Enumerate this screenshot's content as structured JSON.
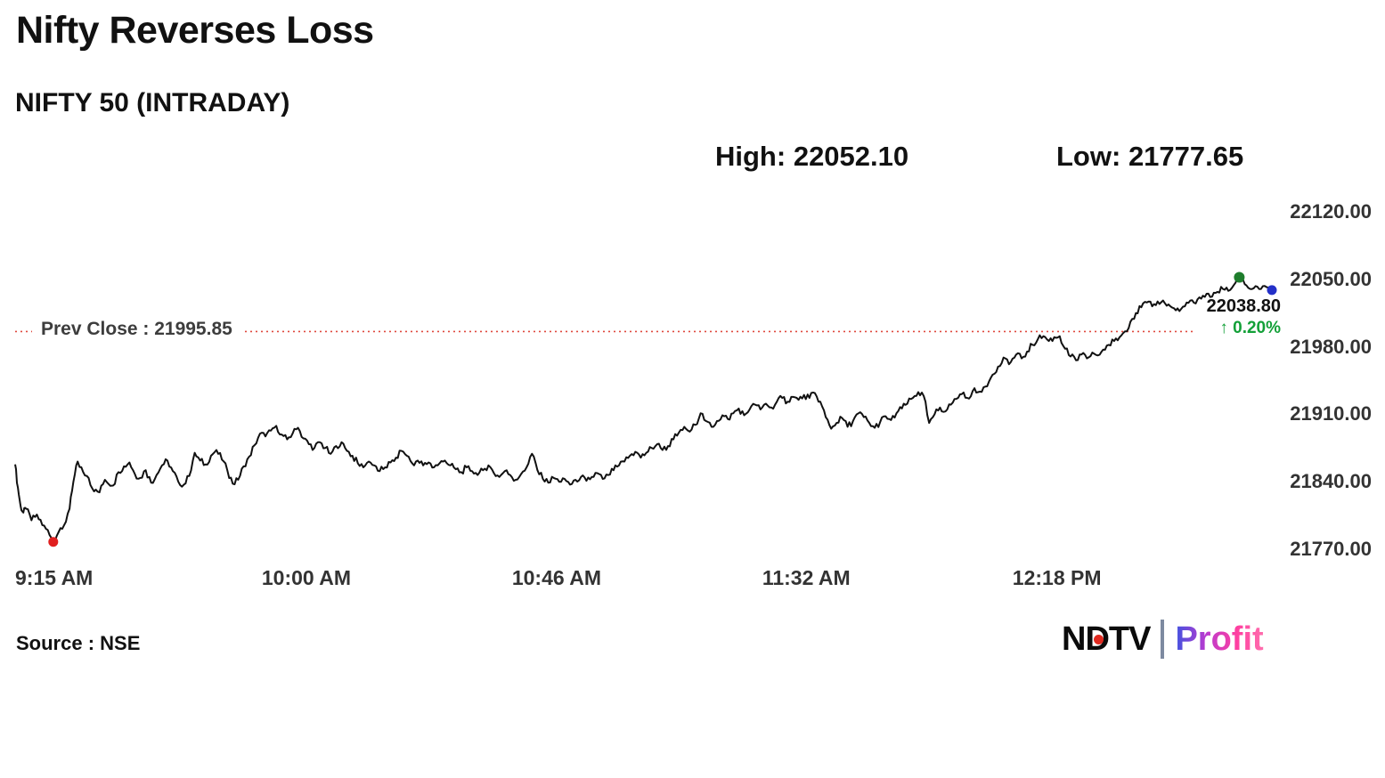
{
  "header": {
    "title": "Nifty Reverses Loss",
    "subtitle": "NIFTY 50 (INTRADAY)"
  },
  "stats": {
    "high_label": "High:",
    "high_value": "22052.10",
    "low_label": "Low:",
    "low_value": "21777.65"
  },
  "footer": {
    "source": "Source : NSE",
    "logo": {
      "brand": "NDTV",
      "product": "Profit"
    }
  },
  "chart_data": {
    "type": "line",
    "title": "Nifty Reverses Loss",
    "subtitle": "NIFTY 50 (INTRADAY)",
    "high": 22052.1,
    "low": 21777.65,
    "last": 22038.8,
    "last_label": "22038.80",
    "change_arrow": "↑",
    "change_pct": "0.20%",
    "change_color": "#13a038",
    "prev_close": {
      "label": "Prev Close : 21995.85",
      "value": 21995.85,
      "color": "#e0483e"
    },
    "ylim": [
      21770,
      22120
    ],
    "xlim": [
      0,
      231
    ],
    "x_unit": "minutes since 9:15 AM",
    "grid": false,
    "legend": "none",
    "y_ticks": [
      {
        "value": 22120,
        "label": "22120.00"
      },
      {
        "value": 22050,
        "label": "22050.00"
      },
      {
        "value": 21980,
        "label": "21980.00"
      },
      {
        "value": 21910,
        "label": "21910.00"
      },
      {
        "value": 21840,
        "label": "21840.00"
      },
      {
        "value": 21770,
        "label": "21770.00"
      }
    ],
    "x_ticks": [
      {
        "t": 0,
        "label": "9:15 AM"
      },
      {
        "t": 45,
        "label": "10:00 AM"
      },
      {
        "t": 91,
        "label": "10:46 AM"
      },
      {
        "t": 137,
        "label": "11:32 AM"
      },
      {
        "t": 183,
        "label": "12:18 PM"
      }
    ],
    "markers": [
      {
        "name": "low-marker",
        "t": 7,
        "value": 21777.65,
        "color": "#e01f1f",
        "r": 5.5
      },
      {
        "name": "high-marker",
        "t": 225,
        "value": 22052.1,
        "color": "#1e7d2c",
        "r": 6
      },
      {
        "name": "last-marker",
        "t": 231,
        "value": 22038.8,
        "color": "#2430c8",
        "r": 5.5
      }
    ],
    "series": [
      {
        "name": "NIFTY 50",
        "color": "#111111",
        "points": [
          [
            0,
            21858
          ],
          [
            0.5,
            21834
          ],
          [
            1,
            21815
          ],
          [
            1.5,
            21808
          ],
          [
            2,
            21812
          ],
          [
            3,
            21800
          ],
          [
            4,
            21806
          ],
          [
            5,
            21795
          ],
          [
            6,
            21790
          ],
          [
            7,
            21777.65
          ],
          [
            8,
            21788
          ],
          [
            9,
            21795
          ],
          [
            10,
            21812
          ],
          [
            10.7,
            21840
          ],
          [
            11.5,
            21861
          ],
          [
            12.5,
            21850
          ],
          [
            13.5,
            21844
          ],
          [
            14.5,
            21830
          ],
          [
            15.5,
            21829
          ],
          [
            16.5,
            21842
          ],
          [
            18,
            21836
          ],
          [
            19,
            21850
          ],
          [
            20,
            21856
          ],
          [
            21,
            21860
          ],
          [
            22,
            21848
          ],
          [
            23,
            21844
          ],
          [
            24,
            21852
          ],
          [
            25,
            21839
          ],
          [
            26,
            21847
          ],
          [
            27,
            21857
          ],
          [
            28,
            21862
          ],
          [
            29,
            21851
          ],
          [
            30,
            21840
          ],
          [
            31,
            21837
          ],
          [
            32,
            21846
          ],
          [
            33,
            21870
          ],
          [
            34,
            21862
          ],
          [
            35,
            21858
          ],
          [
            36,
            21867
          ],
          [
            37,
            21873
          ],
          [
            38,
            21863
          ],
          [
            39,
            21852
          ],
          [
            40,
            21838
          ],
          [
            41,
            21842
          ],
          [
            42,
            21856
          ],
          [
            43,
            21866
          ],
          [
            44,
            21878
          ],
          [
            45,
            21890
          ],
          [
            46,
            21887
          ],
          [
            47,
            21893
          ],
          [
            48,
            21898
          ],
          [
            49,
            21889
          ],
          [
            50,
            21884
          ],
          [
            51,
            21890
          ],
          [
            52,
            21896
          ],
          [
            53,
            21885
          ],
          [
            54,
            21879
          ],
          [
            55,
            21875
          ],
          [
            56,
            21881
          ],
          [
            57,
            21875
          ],
          [
            58,
            21869
          ],
          [
            59,
            21877
          ],
          [
            60,
            21881
          ],
          [
            61,
            21872
          ],
          [
            62,
            21867
          ],
          [
            63,
            21859
          ],
          [
            64,
            21855
          ],
          [
            65,
            21861
          ],
          [
            66,
            21857
          ],
          [
            67,
            21851
          ],
          [
            68,
            21855
          ],
          [
            69,
            21860
          ],
          [
            70,
            21865
          ],
          [
            71,
            21872
          ],
          [
            72,
            21867
          ],
          [
            73,
            21859
          ],
          [
            74,
            21862
          ],
          [
            75,
            21857
          ],
          [
            76,
            21860
          ],
          [
            77,
            21855
          ],
          [
            78,
            21859
          ],
          [
            79,
            21862
          ],
          [
            80,
            21857
          ],
          [
            81,
            21853
          ],
          [
            82,
            21850
          ],
          [
            83,
            21855
          ],
          [
            84,
            21851
          ],
          [
            85,
            21847
          ],
          [
            86,
            21852
          ],
          [
            87,
            21857
          ],
          [
            88,
            21849
          ],
          [
            89,
            21845
          ],
          [
            90,
            21851
          ],
          [
            91,
            21847
          ],
          [
            92,
            21842
          ],
          [
            93,
            21848
          ],
          [
            94,
            21855
          ],
          [
            95,
            21869
          ],
          [
            96,
            21852
          ],
          [
            97,
            21843
          ],
          [
            98,
            21839
          ],
          [
            99,
            21844
          ],
          [
            100,
            21840
          ],
          [
            101,
            21843
          ],
          [
            102,
            21837
          ],
          [
            103,
            21842
          ],
          [
            104,
            21845
          ],
          [
            105,
            21841
          ],
          [
            106,
            21845
          ],
          [
            107,
            21849
          ],
          [
            108,
            21843
          ],
          [
            109,
            21847
          ],
          [
            110,
            21852
          ],
          [
            111,
            21857
          ],
          [
            112,
            21861
          ],
          [
            113,
            21867
          ],
          [
            114,
            21871
          ],
          [
            115,
            21865
          ],
          [
            116,
            21870
          ],
          [
            117,
            21875
          ],
          [
            118,
            21879
          ],
          [
            119,
            21873
          ],
          [
            120,
            21877
          ],
          [
            121,
            21884
          ],
          [
            122,
            21891
          ],
          [
            123,
            21897
          ],
          [
            124,
            21892
          ],
          [
            125,
            21899
          ],
          [
            126,
            21911
          ],
          [
            127,
            21903
          ],
          [
            128,
            21897
          ],
          [
            129,
            21903
          ],
          [
            130,
            21909
          ],
          [
            131,
            21905
          ],
          [
            132,
            21911
          ],
          [
            133,
            21916
          ],
          [
            134,
            21909
          ],
          [
            135,
            21915
          ],
          [
            136,
            21920
          ],
          [
            137,
            21915
          ],
          [
            138,
            21921
          ],
          [
            139,
            21917
          ],
          [
            140,
            21923
          ],
          [
            141,
            21927
          ],
          [
            142,
            21923
          ],
          [
            143,
            21928
          ],
          [
            144,
            21925
          ],
          [
            145,
            21930
          ],
          [
            146,
            21927
          ],
          [
            147,
            21932
          ],
          [
            148,
            21923
          ],
          [
            149,
            21907
          ],
          [
            150,
            21895
          ],
          [
            151,
            21901
          ],
          [
            152,
            21906
          ],
          [
            153,
            21897
          ],
          [
            154,
            21903
          ],
          [
            155,
            21911
          ],
          [
            156,
            21907
          ],
          [
            157,
            21901
          ],
          [
            158,
            21896
          ],
          [
            159,
            21902
          ],
          [
            160,
            21908
          ],
          [
            161,
            21904
          ],
          [
            162,
            21911
          ],
          [
            163,
            21916
          ],
          [
            164,
            21921
          ],
          [
            165,
            21927
          ],
          [
            166,
            21933
          ],
          [
            167,
            21929
          ],
          [
            168,
            21901
          ],
          [
            169,
            21910
          ],
          [
            170,
            21917
          ],
          [
            171,
            21913
          ],
          [
            172,
            21920
          ],
          [
            173,
            21926
          ],
          [
            174,
            21931
          ],
          [
            175,
            21927
          ],
          [
            176,
            21934
          ],
          [
            177,
            21933
          ],
          [
            178,
            21938
          ],
          [
            179,
            21944
          ],
          [
            180,
            21952
          ],
          [
            181,
            21960
          ],
          [
            182,
            21968
          ],
          [
            183,
            21964
          ],
          [
            184,
            21972
          ],
          [
            185,
            21968
          ],
          [
            186,
            21975
          ],
          [
            187,
            21982
          ],
          [
            188,
            21988
          ],
          [
            189,
            21991
          ],
          [
            190,
            21986
          ],
          [
            191,
            21990
          ],
          [
            192,
            21991
          ],
          [
            193,
            21978
          ],
          [
            194,
            21970
          ],
          [
            195,
            21966
          ],
          [
            196,
            21972
          ],
          [
            197,
            21968
          ],
          [
            198,
            21974
          ],
          [
            199,
            21971
          ],
          [
            200,
            21977
          ],
          [
            201,
            21982
          ],
          [
            202,
            21986
          ],
          [
            203,
            21990
          ],
          [
            204,
            21996
          ],
          [
            205,
            22006
          ],
          [
            206,
            22015
          ],
          [
            207,
            22021
          ],
          [
            208,
            22026
          ],
          [
            209,
            22022
          ],
          [
            210,
            22027
          ],
          [
            211,
            22028
          ],
          [
            212,
            22024
          ],
          [
            213,
            22020
          ],
          [
            214,
            22017
          ],
          [
            215,
            22022
          ],
          [
            216,
            22028
          ],
          [
            217,
            22025
          ],
          [
            218,
            22030
          ],
          [
            219,
            22035
          ],
          [
            220,
            22032
          ],
          [
            221,
            22037
          ],
          [
            222,
            22040
          ],
          [
            223,
            22038
          ],
          [
            224,
            22044
          ],
          [
            225,
            22052.1
          ],
          [
            226,
            22045
          ],
          [
            227,
            22040
          ],
          [
            228,
            22043
          ],
          [
            229,
            22040
          ],
          [
            230,
            22042
          ],
          [
            231,
            22038.8
          ]
        ]
      }
    ]
  }
}
